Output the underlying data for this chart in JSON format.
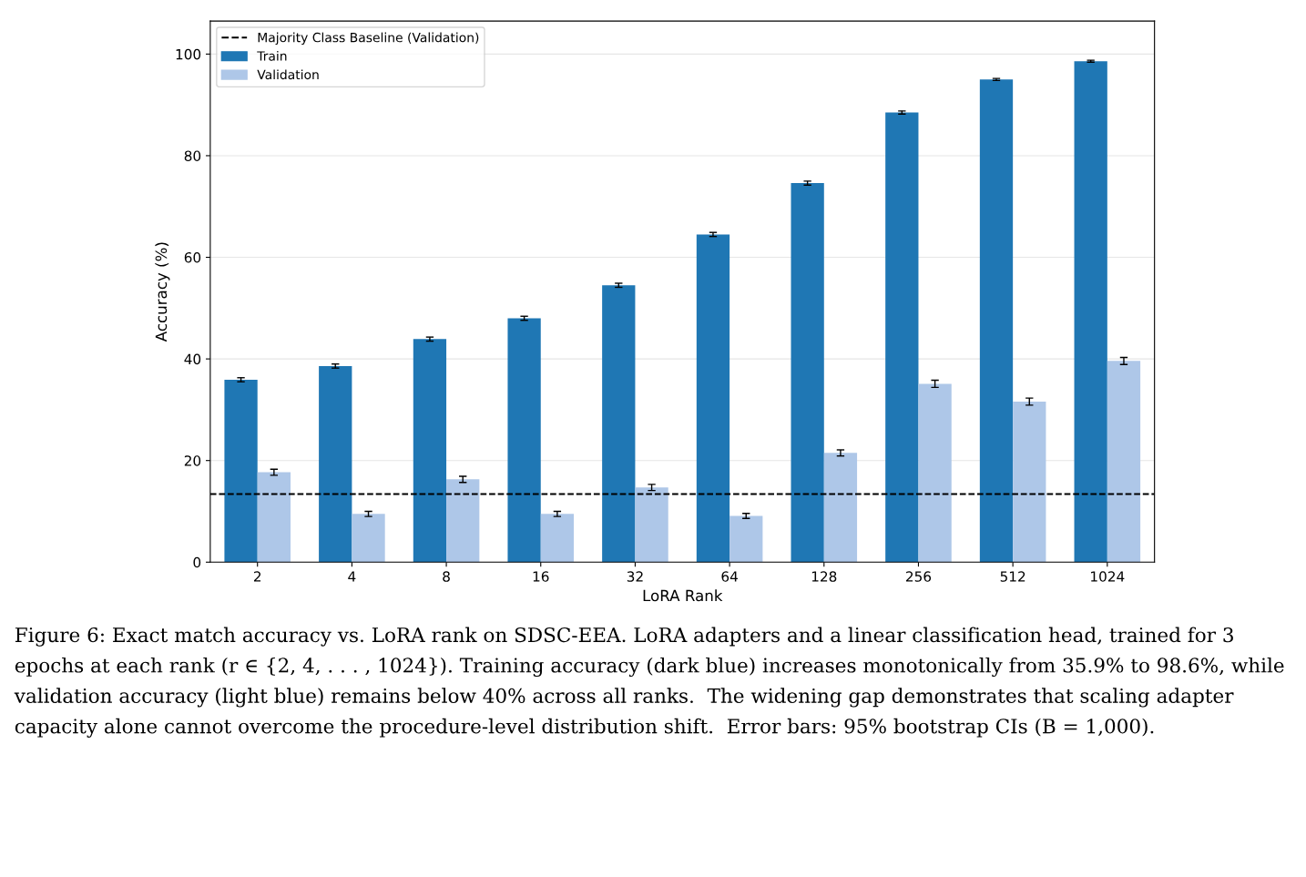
{
  "chart_data": {
    "type": "bar",
    "xlabel": "LoRA Rank",
    "ylabel": "Accuracy (%)",
    "categories": [
      "2",
      "4",
      "8",
      "16",
      "32",
      "64",
      "128",
      "256",
      "512",
      "1024"
    ],
    "series": [
      {
        "name": "Train",
        "color": "#1f77b4",
        "values": [
          35.9,
          38.6,
          43.9,
          48.0,
          54.5,
          64.5,
          74.6,
          88.5,
          95.0,
          98.6
        ],
        "errors": [
          0.4,
          0.4,
          0.4,
          0.4,
          0.4,
          0.4,
          0.4,
          0.3,
          0.2,
          0.2
        ]
      },
      {
        "name": "Validation",
        "color": "#aec7e8",
        "values": [
          17.7,
          9.5,
          16.3,
          9.5,
          14.7,
          9.1,
          21.5,
          35.1,
          31.6,
          39.6
        ],
        "errors": [
          0.6,
          0.5,
          0.6,
          0.5,
          0.6,
          0.5,
          0.6,
          0.7,
          0.7,
          0.7
        ]
      }
    ],
    "ylim": [
      0,
      106.5
    ],
    "yticks": [
      0,
      20,
      40,
      60,
      80,
      100
    ],
    "grid": "y",
    "legend": "top left",
    "ref_lines": [
      {
        "axis": "y",
        "value": 13.4,
        "label": "Majority Class Baseline (Validation)",
        "color": "#000000",
        "line_style": "dashed"
      }
    ],
    "annotations": [
      "Figure 6: Exact match accuracy vs. LoRA rank on SDSC-EEA. LoRA adapters and a linear classification head, trained for 3 epochs at each rank (r ∈ {2, 4, . . . , 1024}). Training accuracy (dark blue) increases monotonically from 35.9% to 98.6%, while validation accuracy (light blue) remains below 40% across all ranks.  The widening gap demonstrates that scaling adapter capacity alone cannot overcome the procedure-level distribution shift.  Error bars: 95% bootstrap CIs (B = 1,000)."
    ]
  }
}
